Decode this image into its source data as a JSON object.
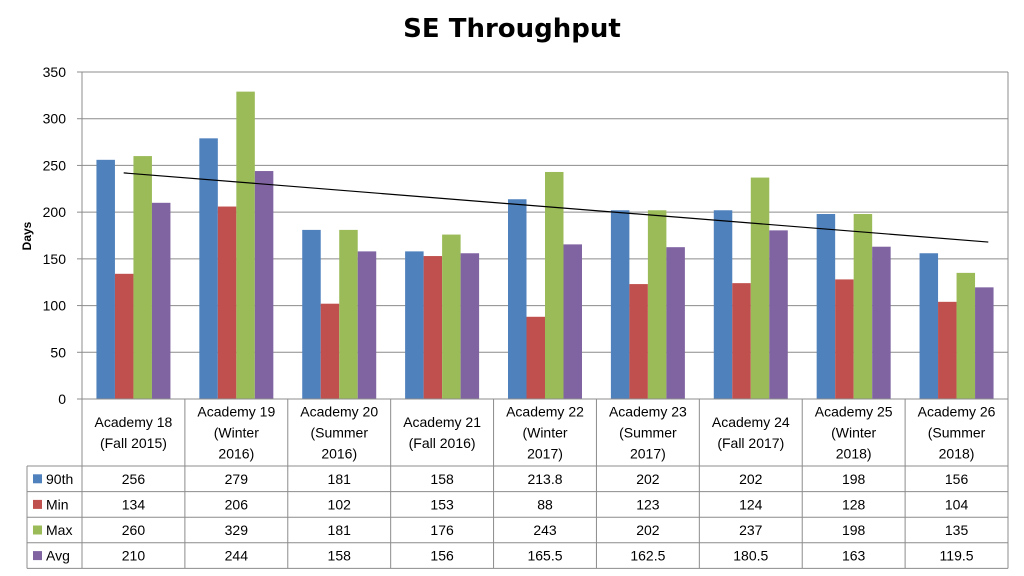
{
  "chart_data": {
    "type": "bar",
    "title": "SE Throughput",
    "ylabel": "Days",
    "xlabel": "",
    "ylim": [
      0,
      350
    ],
    "yticks": [
      0,
      50,
      100,
      150,
      200,
      250,
      300,
      350
    ],
    "grid": true,
    "legend": "data-table",
    "categories": [
      [
        "Academy 18",
        "(Fall 2015)"
      ],
      [
        "Academy 19",
        "(Winter",
        "2016)"
      ],
      [
        "Academy 20",
        "(Summer",
        "2016)"
      ],
      [
        "Academy 21",
        "(Fall 2016)"
      ],
      [
        "Academy 22",
        "(Winter",
        "2017)"
      ],
      [
        "Academy 23",
        "(Summer",
        "2017)"
      ],
      [
        "Academy 24",
        "(Fall 2017)"
      ],
      [
        "Academy 25",
        "(Winter",
        "2018)"
      ],
      [
        "Academy 26",
        "(Summer",
        "2018)"
      ]
    ],
    "series": [
      {
        "name": "90th",
        "color": "#4F81BD",
        "values": [
          256,
          279,
          181,
          158,
          213.8,
          202,
          202,
          198,
          156
        ]
      },
      {
        "name": "Min",
        "color": "#C0504D",
        "values": [
          134,
          206,
          102,
          153,
          88,
          123,
          124,
          128,
          104
        ]
      },
      {
        "name": "Max",
        "color": "#9BBB59",
        "values": [
          260,
          329,
          181,
          176,
          243,
          202,
          237,
          198,
          135
        ]
      },
      {
        "name": "Avg",
        "color": "#8064A2",
        "values": [
          210,
          244,
          158,
          156,
          165.5,
          162.5,
          180.5,
          163,
          119.5
        ]
      }
    ],
    "trendline": {
      "series": "90th",
      "type": "linear",
      "color": "#000000",
      "start": 242,
      "end": 168
    }
  }
}
